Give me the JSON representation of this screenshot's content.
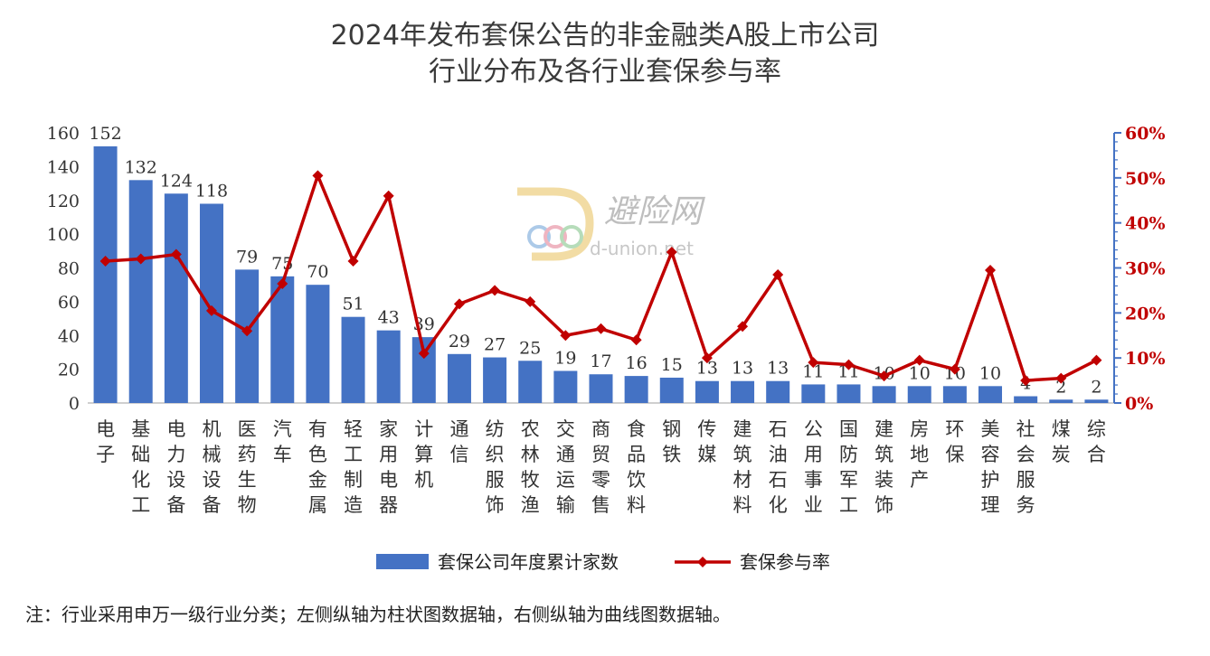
{
  "title_line1": "2024年发布套保公告的非金融类A股上市公司",
  "title_line2": "行业分布及各行业套保参与率",
  "note": "注：行业采用申万一级行业分类；左侧纵轴为柱状图数据轴，右侧纵轴为曲线图数据轴。",
  "watermark": {
    "name": "避险网",
    "url": "d-union.net"
  },
  "chart_data": {
    "type": "bar",
    "categories": [
      "电子",
      "基础化工",
      "电力设备",
      "机械设备",
      "医药生物",
      "汽车",
      "有色金属",
      "轻工制造",
      "家用电器",
      "计算机",
      "通信",
      "纺织服饰",
      "农林牧渔",
      "交通运输",
      "商贸零售",
      "食品饮料",
      "钢铁",
      "传媒",
      "建筑材料",
      "石油石化",
      "公用事业",
      "国防军工",
      "建筑装饰",
      "房地产",
      "环保",
      "美容护理",
      "社会服务",
      "煤炭",
      "综合"
    ],
    "series": [
      {
        "name": "套保公司年度累计家数",
        "type": "bar",
        "axis": "left",
        "color": "#4472c4",
        "values": [
          152,
          132,
          124,
          118,
          79,
          75,
          70,
          51,
          43,
          39,
          29,
          27,
          25,
          19,
          17,
          16,
          15,
          13,
          13,
          13,
          11,
          11,
          10,
          10,
          10,
          10,
          4,
          2,
          2
        ]
      },
      {
        "name": "套保参与率",
        "type": "line",
        "axis": "right",
        "color": "#c00000",
        "values": [
          31.5,
          32,
          33,
          20.5,
          16,
          26.5,
          50.5,
          31.5,
          46,
          11,
          22,
          25,
          22.5,
          15,
          16.5,
          14,
          33.5,
          10,
          17,
          28.5,
          9,
          8.5,
          6,
          9.5,
          7.5,
          29.5,
          5,
          5.5,
          9.5
        ]
      }
    ],
    "ylim_left": [
      0,
      160
    ],
    "yticks_left": [
      "0",
      "20",
      "40",
      "60",
      "80",
      "100",
      "120",
      "140",
      "160"
    ],
    "ylim_right": [
      0,
      60
    ],
    "yticks_right": [
      "0%",
      "10%",
      "20%",
      "30%",
      "40%",
      "50%",
      "60%"
    ],
    "legend_position": "bottom",
    "grid": false
  }
}
